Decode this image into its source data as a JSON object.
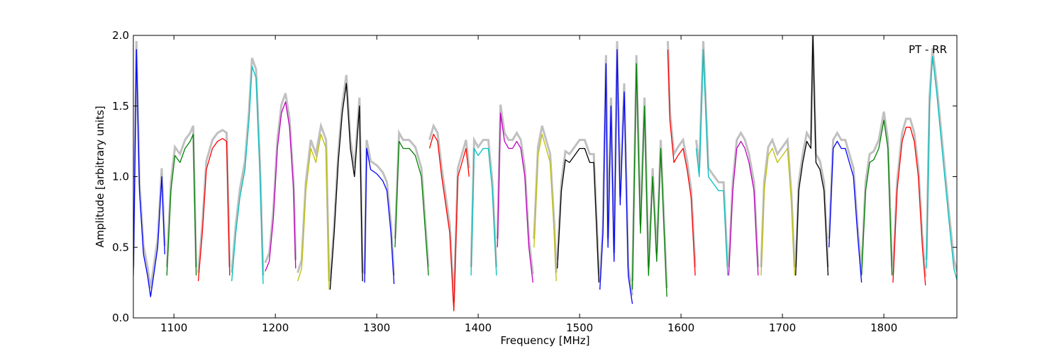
{
  "chart_data": {
    "type": "line",
    "title": "",
    "xlabel": "Frequency [MHz]",
    "ylabel": "Amplitude [arbitrary units]",
    "annotation": "PT - RR",
    "xlim": [
      1060,
      1872
    ],
    "ylim": [
      0.0,
      2.0
    ],
    "grid": false,
    "legend": "none",
    "x_ticks": [
      1100,
      1200,
      1300,
      1400,
      1500,
      1600,
      1700,
      1800
    ],
    "x_tick_labels": [
      "1100",
      "1200",
      "1300",
      "1400",
      "1500",
      "1600",
      "1700",
      "1800"
    ],
    "y_ticks": [
      0.0,
      0.5,
      1.0,
      1.5,
      2.0
    ],
    "y_tick_labels": [
      "0.0",
      "0.5",
      "1.0",
      "1.5",
      "2.0"
    ],
    "background_color": "#c0c0c0",
    "series": [
      {
        "color": "#0000ff",
        "x": [
          1060,
          1063,
          1066,
          1070,
          1074,
          1077,
          1080,
          1084,
          1088,
          1091
        ],
        "y": [
          0.3,
          1.9,
          0.9,
          0.45,
          0.3,
          0.15,
          0.3,
          0.5,
          1.0,
          0.45
        ]
      },
      {
        "color": "#008000",
        "x": [
          1093,
          1097,
          1101,
          1106,
          1111,
          1116,
          1119,
          1122
        ],
        "y": [
          0.3,
          0.9,
          1.15,
          1.1,
          1.2,
          1.25,
          1.3,
          0.3
        ]
      },
      {
        "color": "#ff0000",
        "x": [
          1124,
          1128,
          1132,
          1138,
          1143,
          1148,
          1152,
          1155
        ],
        "y": [
          0.26,
          0.6,
          1.05,
          1.2,
          1.25,
          1.27,
          1.25,
          0.3
        ]
      },
      {
        "color": "#00bfbf",
        "x": [
          1157,
          1161,
          1165,
          1170,
          1174,
          1177,
          1181,
          1185,
          1188
        ],
        "y": [
          0.26,
          0.6,
          0.85,
          1.05,
          1.4,
          1.78,
          1.7,
          1.0,
          0.24
        ]
      },
      {
        "color": "#bf00bf",
        "x": [
          1190,
          1194,
          1198,
          1202,
          1206,
          1210,
          1214,
          1218,
          1220
        ],
        "y": [
          0.33,
          0.4,
          0.7,
          1.2,
          1.45,
          1.53,
          1.35,
          0.9,
          0.35
        ]
      },
      {
        "color": "#bfbf00",
        "x": [
          1222,
          1226,
          1230,
          1235,
          1240,
          1245,
          1250,
          1253
        ],
        "y": [
          0.26,
          0.35,
          0.9,
          1.2,
          1.1,
          1.3,
          1.2,
          0.2
        ]
      },
      {
        "color": "#000000",
        "x": [
          1254,
          1258,
          1262,
          1266,
          1270,
          1274,
          1278,
          1283,
          1286
        ],
        "y": [
          0.2,
          0.6,
          1.1,
          1.45,
          1.66,
          1.2,
          1.0,
          1.5,
          0.26
        ]
      },
      {
        "color": "#0000ff",
        "x": [
          1288,
          1290,
          1294,
          1300,
          1306,
          1310,
          1314,
          1317
        ],
        "y": [
          0.25,
          1.2,
          1.05,
          1.02,
          0.97,
          0.9,
          0.6,
          0.24
        ]
      },
      {
        "color": "#008000",
        "x": [
          1318,
          1322,
          1326,
          1332,
          1338,
          1344,
          1348,
          1351
        ],
        "y": [
          0.5,
          1.25,
          1.2,
          1.2,
          1.15,
          1.0,
          0.6,
          0.3
        ]
      },
      {
        "color": "#ff0000",
        "x": [
          1352,
          1356,
          1360,
          1364,
          1368,
          1372,
          1376,
          1380,
          1384,
          1388,
          1391
        ],
        "y": [
          1.2,
          1.3,
          1.25,
          1.0,
          0.8,
          0.6,
          0.05,
          1.0,
          1.1,
          1.2,
          1.0
        ]
      },
      {
        "color": "#00bfbf",
        "x": [
          1393,
          1396,
          1400,
          1405,
          1410,
          1414,
          1418
        ],
        "y": [
          0.3,
          1.2,
          1.15,
          1.2,
          1.2,
          0.9,
          0.3
        ]
      },
      {
        "color": "#bf00bf",
        "x": [
          1419,
          1422,
          1426,
          1430,
          1434,
          1438,
          1442,
          1446,
          1450,
          1454
        ],
        "y": [
          0.5,
          1.45,
          1.25,
          1.2,
          1.2,
          1.25,
          1.2,
          1.0,
          0.5,
          0.25
        ]
      },
      {
        "color": "#bfbf00",
        "x": [
          1455,
          1459,
          1463,
          1467,
          1471,
          1475,
          1477
        ],
        "y": [
          0.5,
          1.15,
          1.3,
          1.2,
          1.1,
          0.6,
          0.26
        ]
      },
      {
        "color": "#000000",
        "x": [
          1478,
          1482,
          1486,
          1490,
          1495,
          1500,
          1505,
          1510,
          1514,
          1517,
          1519
        ],
        "y": [
          0.35,
          0.9,
          1.12,
          1.1,
          1.15,
          1.2,
          1.2,
          1.1,
          1.1,
          0.6,
          0.25
        ]
      },
      {
        "color": "#0000ff",
        "x": [
          1520,
          1523,
          1526,
          1528,
          1531,
          1534,
          1537,
          1540,
          1544,
          1548,
          1552
        ],
        "y": [
          0.2,
          0.6,
          1.8,
          0.5,
          1.5,
          0.4,
          1.9,
          0.8,
          1.6,
          0.3,
          0.1
        ]
      },
      {
        "color": "#008000",
        "x": [
          1552,
          1556,
          1560,
          1564,
          1568,
          1572,
          1576,
          1580,
          1584,
          1586
        ],
        "y": [
          0.2,
          1.8,
          0.6,
          1.5,
          0.3,
          1.0,
          0.4,
          1.2,
          0.5,
          0.15
        ]
      },
      {
        "color": "#ff0000",
        "x": [
          1587,
          1589,
          1593,
          1597,
          1602,
          1606,
          1610,
          1614
        ],
        "y": [
          1.9,
          1.4,
          1.1,
          1.15,
          1.2,
          1.05,
          0.85,
          0.3
        ]
      },
      {
        "color": "#00bfbf",
        "x": [
          1615,
          1618,
          1622,
          1627,
          1632,
          1637,
          1642,
          1646
        ],
        "y": [
          1.2,
          1.0,
          1.9,
          1.0,
          0.95,
          0.9,
          0.9,
          0.3
        ]
      },
      {
        "color": "#bf00bf",
        "x": [
          1647,
          1651,
          1655,
          1659,
          1663,
          1667,
          1672,
          1676
        ],
        "y": [
          0.3,
          0.9,
          1.2,
          1.25,
          1.2,
          1.1,
          0.9,
          0.3
        ]
      },
      {
        "color": "#bfbf00",
        "x": [
          1679,
          1682,
          1686,
          1690,
          1695,
          1700,
          1705,
          1709,
          1712
        ],
        "y": [
          0.3,
          0.9,
          1.15,
          1.2,
          1.1,
          1.15,
          1.2,
          0.8,
          0.3
        ]
      },
      {
        "color": "#000000",
        "x": [
          1713,
          1716,
          1720,
          1724,
          1728,
          1730,
          1733,
          1737,
          1741,
          1745
        ],
        "y": [
          0.3,
          0.9,
          1.1,
          1.25,
          1.2,
          2.0,
          1.1,
          1.05,
          0.9,
          0.3
        ]
      },
      {
        "color": "#0000ff",
        "x": [
          1746,
          1750,
          1754,
          1758,
          1762,
          1766,
          1770,
          1774,
          1778
        ],
        "y": [
          0.5,
          1.2,
          1.25,
          1.2,
          1.2,
          1.1,
          1.0,
          0.6,
          0.25
        ]
      },
      {
        "color": "#008000",
        "x": [
          1778,
          1782,
          1786,
          1790,
          1795,
          1800,
          1804,
          1808
        ],
        "y": [
          0.3,
          0.9,
          1.1,
          1.12,
          1.2,
          1.4,
          1.2,
          0.3
        ]
      },
      {
        "color": "#ff0000",
        "x": [
          1809,
          1813,
          1818,
          1822,
          1826,
          1830,
          1834,
          1838,
          1841
        ],
        "y": [
          0.25,
          0.9,
          1.25,
          1.35,
          1.35,
          1.25,
          1.0,
          0.5,
          0.23
        ]
      },
      {
        "color": "#00bfbf",
        "x": [
          1842,
          1845,
          1848,
          1852,
          1856,
          1860,
          1864,
          1869,
          1872
        ],
        "y": [
          0.35,
          1.5,
          1.85,
          1.6,
          1.3,
          1.0,
          0.7,
          0.35,
          0.27
        ]
      }
    ]
  }
}
